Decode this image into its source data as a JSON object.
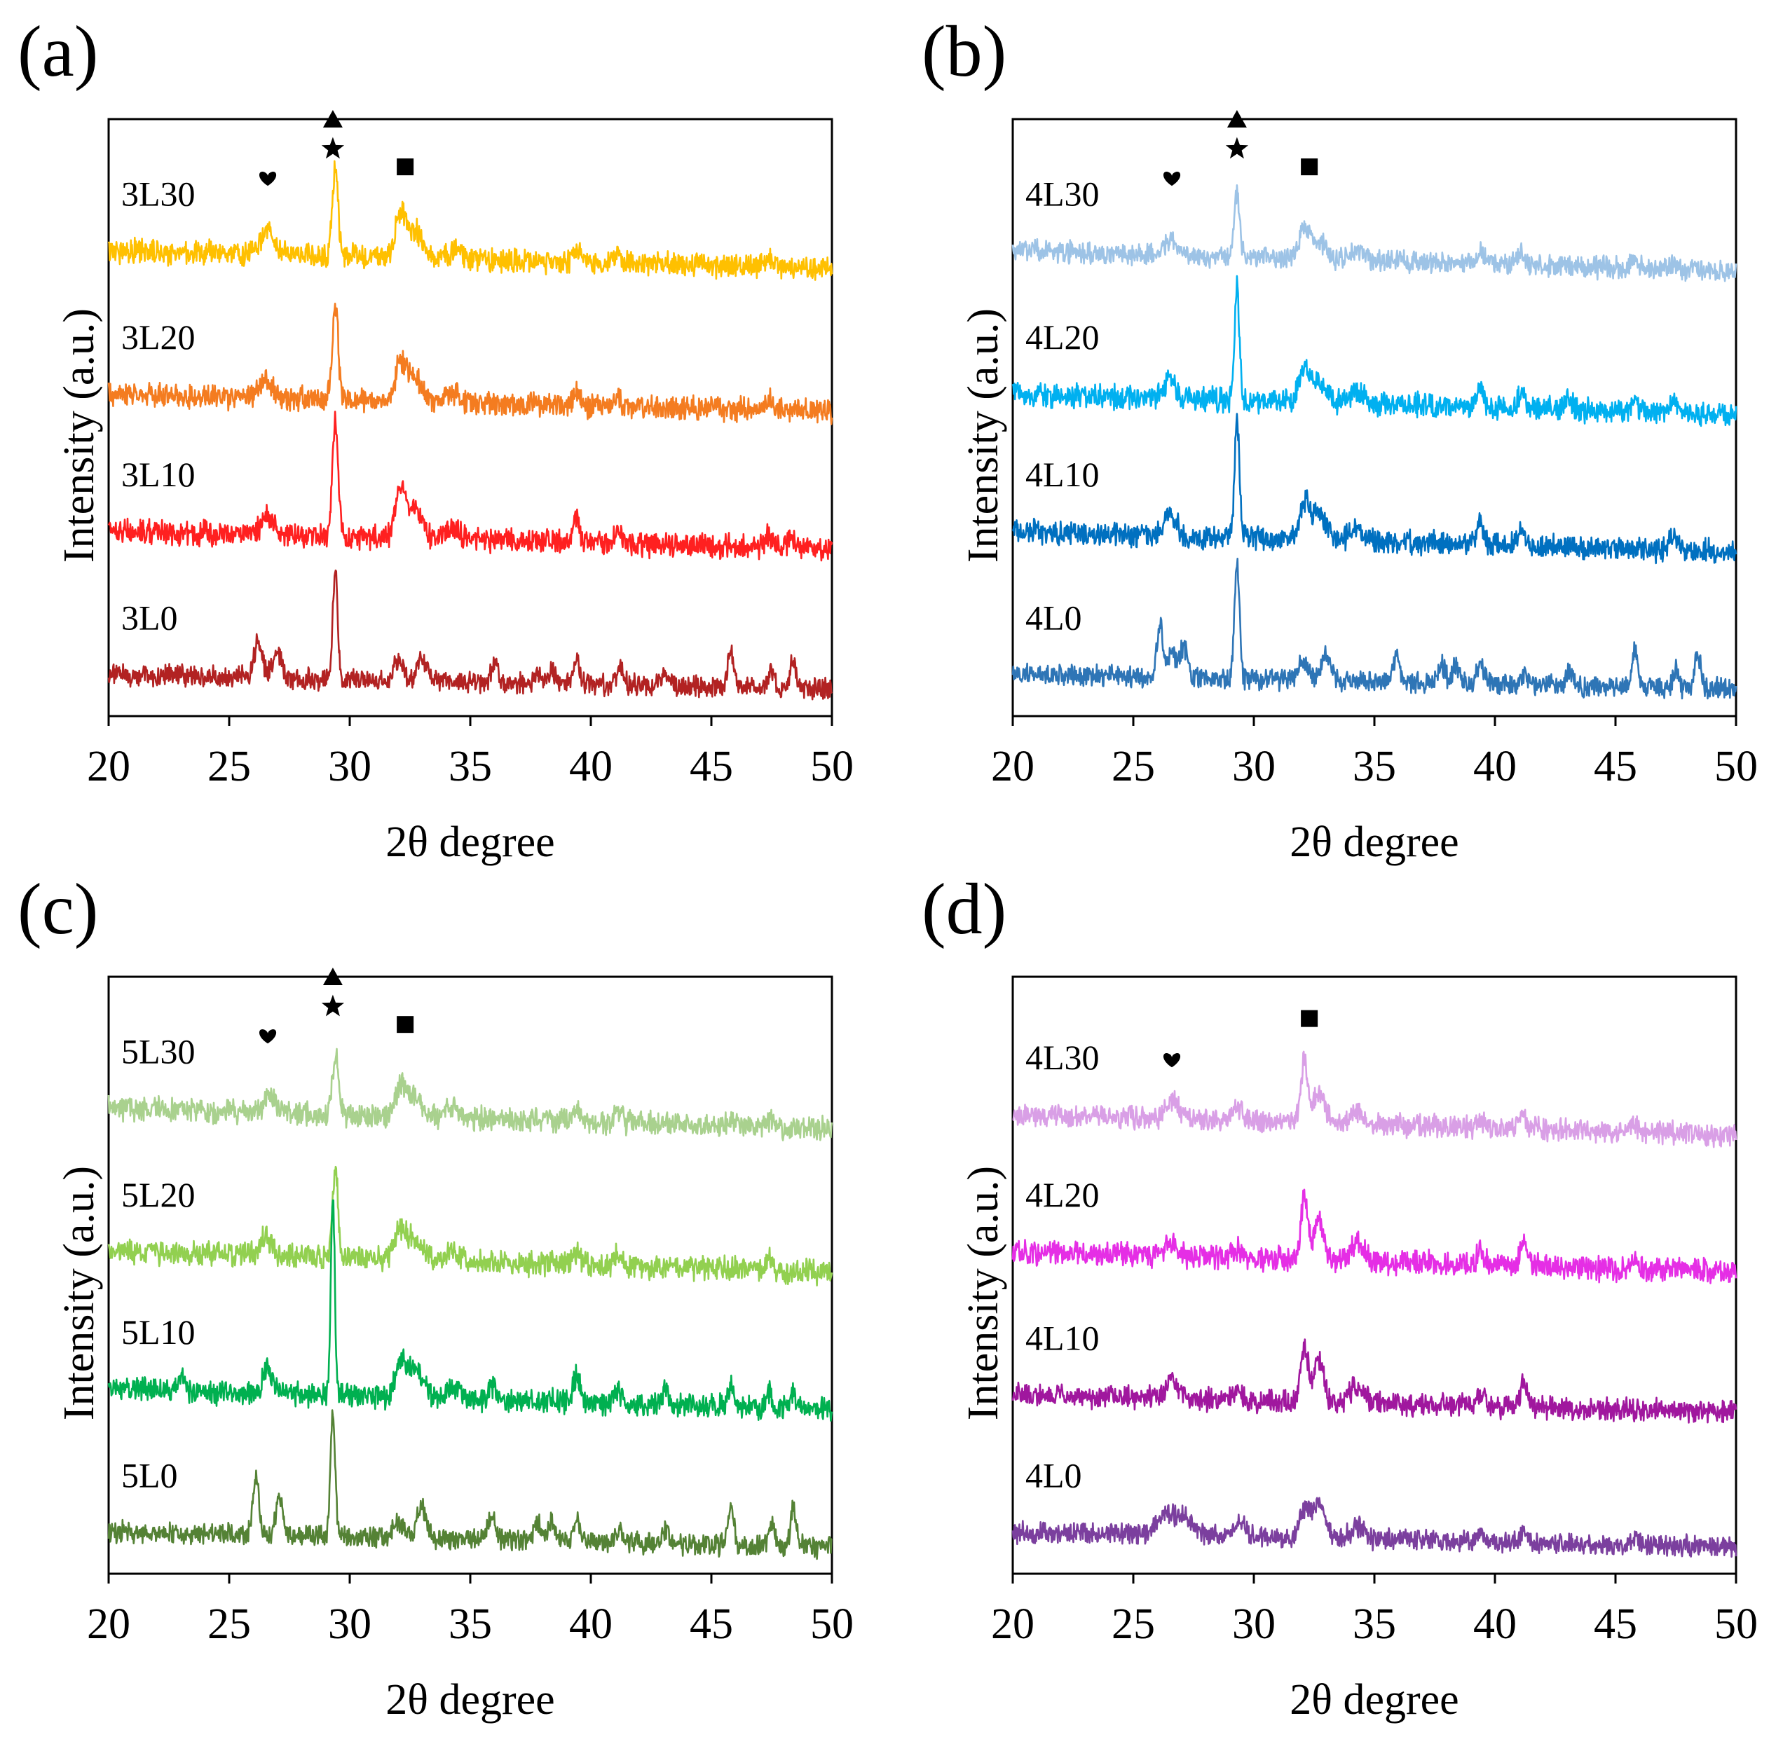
{
  "chart_data": [
    {
      "type": "line",
      "panel_label": "(a)",
      "xlabel": "2θ degree",
      "ylabel": "Intensity (a.u.)",
      "xlim": [
        20,
        50
      ],
      "x_ticks": [
        "20",
        "25",
        "30",
        "35",
        "40",
        "45",
        "50"
      ],
      "grid": false,
      "series": [
        {
          "name": "3L30",
          "color": "#FFC000",
          "baseline": 0.78,
          "drop": 0.03,
          "noise": 0.016,
          "peaks": [
            [
              26.6,
              0.04,
              0.25
            ],
            [
              29.4,
              0.14,
              0.12
            ],
            [
              32.1,
              0.07,
              0.22
            ],
            [
              32.7,
              0.045,
              0.3
            ],
            [
              34.4,
              0.015,
              0.3
            ],
            [
              39.4,
              0.02,
              0.15
            ],
            [
              41.1,
              0.02,
              0.15
            ],
            [
              47.4,
              0.018,
              0.15
            ]
          ]
        },
        {
          "name": "3L20",
          "color": "#F47C20",
          "baseline": 0.54,
          "drop": 0.03,
          "noise": 0.016,
          "peaks": [
            [
              26.5,
              0.03,
              0.25
            ],
            [
              29.4,
              0.16,
              0.12
            ],
            [
              32.1,
              0.06,
              0.22
            ],
            [
              32.7,
              0.04,
              0.3
            ],
            [
              34.3,
              0.015,
              0.3
            ],
            [
              39.4,
              0.02,
              0.15
            ],
            [
              41.1,
              0.02,
              0.15
            ],
            [
              47.4,
              0.015,
              0.15
            ]
          ]
        },
        {
          "name": "3L10",
          "color": "#FF2020",
          "baseline": 0.31,
          "drop": 0.03,
          "noise": 0.016,
          "peaks": [
            [
              26.6,
              0.035,
              0.25
            ],
            [
              29.4,
              0.19,
              0.12
            ],
            [
              32.1,
              0.08,
              0.2
            ],
            [
              32.7,
              0.05,
              0.3
            ],
            [
              34.3,
              0.02,
              0.3
            ],
            [
              39.4,
              0.035,
              0.15
            ],
            [
              41.1,
              0.025,
              0.15
            ],
            [
              47.4,
              0.02,
              0.15
            ],
            [
              48.3,
              0.02,
              0.15
            ]
          ]
        },
        {
          "name": "3L0",
          "color": "#B22222",
          "baseline": 0.07,
          "drop": 0.025,
          "noise": 0.014,
          "peaks": [
            [
              26.2,
              0.065,
              0.15
            ],
            [
              27.0,
              0.04,
              0.2
            ],
            [
              29.4,
              0.18,
              0.1
            ],
            [
              32.0,
              0.035,
              0.2
            ],
            [
              33.0,
              0.035,
              0.2
            ],
            [
              36.0,
              0.03,
              0.15
            ],
            [
              37.8,
              0.02,
              0.15
            ],
            [
              38.4,
              0.02,
              0.15
            ],
            [
              39.4,
              0.035,
              0.15
            ],
            [
              41.2,
              0.025,
              0.15
            ],
            [
              43.1,
              0.02,
              0.15
            ],
            [
              45.8,
              0.06,
              0.12
            ],
            [
              47.5,
              0.025,
              0.12
            ],
            [
              48.4,
              0.05,
              0.12
            ]
          ]
        }
      ],
      "markers": [
        {
          "symbol": "heart",
          "x": 26.6,
          "y": 0.9
        },
        {
          "symbol": "triangle",
          "x": 29.3,
          "y": 1.0
        },
        {
          "symbol": "star",
          "x": 29.3,
          "y": 0.95
        },
        {
          "symbol": "square",
          "x": 32.3,
          "y": 0.92
        }
      ]
    },
    {
      "type": "line",
      "panel_label": "(b)",
      "xlabel": "2θ degree",
      "ylabel": "Intensity (a.u.)",
      "xlim": [
        20,
        50
      ],
      "x_ticks": [
        "20",
        "25",
        "30",
        "35",
        "40",
        "45",
        "50"
      ],
      "grid": false,
      "series": [
        {
          "name": "4L30",
          "color": "#9DC3E6",
          "baseline": 0.78,
          "drop": 0.035,
          "noise": 0.014,
          "peaks": [
            [
              26.6,
              0.025,
              0.3
            ],
            [
              29.3,
              0.1,
              0.12
            ],
            [
              32.1,
              0.045,
              0.22
            ],
            [
              32.7,
              0.03,
              0.3
            ],
            [
              34.3,
              0.015,
              0.3
            ],
            [
              39.4,
              0.02,
              0.15
            ],
            [
              41.1,
              0.02,
              0.15
            ],
            [
              45.8,
              0.012,
              0.15
            ],
            [
              47.4,
              0.012,
              0.15
            ]
          ]
        },
        {
          "name": "4L20",
          "color": "#00B0F0",
          "baseline": 0.54,
          "drop": 0.035,
          "noise": 0.016,
          "peaks": [
            [
              26.5,
              0.03,
              0.25
            ],
            [
              29.3,
              0.19,
              0.1
            ],
            [
              32.1,
              0.05,
              0.22
            ],
            [
              32.7,
              0.035,
              0.3
            ],
            [
              34.3,
              0.02,
              0.3
            ],
            [
              39.4,
              0.03,
              0.15
            ],
            [
              41.1,
              0.025,
              0.15
            ],
            [
              43.1,
              0.015,
              0.15
            ],
            [
              45.8,
              0.015,
              0.15
            ],
            [
              47.4,
              0.025,
              0.15
            ]
          ]
        },
        {
          "name": "4L10",
          "color": "#0070C0",
          "baseline": 0.31,
          "drop": 0.035,
          "noise": 0.016,
          "peaks": [
            [
              26.5,
              0.04,
              0.25
            ],
            [
              29.3,
              0.2,
              0.1
            ],
            [
              32.1,
              0.06,
              0.22
            ],
            [
              32.7,
              0.04,
              0.3
            ],
            [
              34.3,
              0.02,
              0.3
            ],
            [
              39.4,
              0.035,
              0.15
            ],
            [
              41.1,
              0.025,
              0.15
            ],
            [
              47.4,
              0.025,
              0.15
            ]
          ]
        },
        {
          "name": "4L0",
          "color": "#2E75B6",
          "baseline": 0.07,
          "drop": 0.025,
          "noise": 0.014,
          "peaks": [
            [
              26.1,
              0.09,
              0.12
            ],
            [
              26.6,
              0.04,
              0.2
            ],
            [
              27.1,
              0.05,
              0.15
            ],
            [
              29.3,
              0.2,
              0.1
            ],
            [
              32.0,
              0.03,
              0.2
            ],
            [
              33.0,
              0.045,
              0.2
            ],
            [
              35.9,
              0.04,
              0.15
            ],
            [
              37.8,
              0.03,
              0.15
            ],
            [
              38.4,
              0.03,
              0.15
            ],
            [
              39.4,
              0.035,
              0.15
            ],
            [
              41.2,
              0.02,
              0.15
            ],
            [
              43.1,
              0.025,
              0.15
            ],
            [
              45.8,
              0.065,
              0.12
            ],
            [
              47.5,
              0.03,
              0.12
            ],
            [
              48.4,
              0.06,
              0.12
            ]
          ]
        }
      ],
      "markers": [
        {
          "symbol": "heart",
          "x": 26.6,
          "y": 0.9
        },
        {
          "symbol": "triangle",
          "x": 29.3,
          "y": 1.0
        },
        {
          "symbol": "star",
          "x": 29.3,
          "y": 0.95
        },
        {
          "symbol": "square",
          "x": 32.3,
          "y": 0.92
        }
      ]
    },
    {
      "type": "line",
      "panel_label": "(c)",
      "xlabel": "2θ degree",
      "ylabel": "Intensity (a.u.)",
      "xlim": [
        20,
        50
      ],
      "x_ticks": [
        "20",
        "25",
        "30",
        "35",
        "40",
        "45",
        "50"
      ],
      "grid": false,
      "series": [
        {
          "name": "5L30",
          "color": "#A9D18E",
          "baseline": 0.78,
          "drop": 0.035,
          "noise": 0.016,
          "peaks": [
            [
              26.7,
              0.03,
              0.25
            ],
            [
              29.4,
              0.1,
              0.12
            ],
            [
              32.1,
              0.05,
              0.22
            ],
            [
              32.7,
              0.035,
              0.3
            ],
            [
              34.3,
              0.015,
              0.3
            ],
            [
              39.4,
              0.02,
              0.15
            ],
            [
              41.1,
              0.02,
              0.15
            ],
            [
              45.8,
              0.012,
              0.15
            ],
            [
              47.4,
              0.012,
              0.15
            ]
          ]
        },
        {
          "name": "5L20",
          "color": "#92D050",
          "baseline": 0.54,
          "drop": 0.035,
          "noise": 0.016,
          "peaks": [
            [
              26.5,
              0.03,
              0.25
            ],
            [
              29.4,
              0.15,
              0.12
            ],
            [
              32.1,
              0.05,
              0.22
            ],
            [
              32.7,
              0.035,
              0.3
            ],
            [
              34.3,
              0.015,
              0.3
            ],
            [
              39.4,
              0.02,
              0.15
            ],
            [
              41.1,
              0.02,
              0.15
            ],
            [
              47.4,
              0.015,
              0.15
            ]
          ]
        },
        {
          "name": "5L10",
          "color": "#00B050",
          "baseline": 0.31,
          "drop": 0.035,
          "noise": 0.016,
          "peaks": [
            [
              23.0,
              0.025,
              0.15
            ],
            [
              26.6,
              0.04,
              0.2
            ],
            [
              29.3,
              0.33,
              0.08
            ],
            [
              32.1,
              0.06,
              0.2
            ],
            [
              32.7,
              0.05,
              0.3
            ],
            [
              34.3,
              0.02,
              0.3
            ],
            [
              35.9,
              0.025,
              0.12
            ],
            [
              39.4,
              0.04,
              0.15
            ],
            [
              41.1,
              0.025,
              0.15
            ],
            [
              43.1,
              0.025,
              0.15
            ],
            [
              45.8,
              0.03,
              0.12
            ],
            [
              47.4,
              0.03,
              0.12
            ],
            [
              48.4,
              0.025,
              0.12
            ]
          ]
        },
        {
          "name": "5L0",
          "color": "#548235",
          "baseline": 0.07,
          "drop": 0.025,
          "noise": 0.014,
          "peaks": [
            [
              26.1,
              0.1,
              0.12
            ],
            [
              27.1,
              0.065,
              0.15
            ],
            [
              29.3,
              0.2,
              0.1
            ],
            [
              32.0,
              0.03,
              0.2
            ],
            [
              33.0,
              0.05,
              0.2
            ],
            [
              35.9,
              0.035,
              0.15
            ],
            [
              37.8,
              0.035,
              0.15
            ],
            [
              38.4,
              0.03,
              0.15
            ],
            [
              39.4,
              0.035,
              0.15
            ],
            [
              41.2,
              0.02,
              0.15
            ],
            [
              43.1,
              0.025,
              0.15
            ],
            [
              45.8,
              0.065,
              0.12
            ],
            [
              47.5,
              0.03,
              0.12
            ],
            [
              48.4,
              0.065,
              0.12
            ]
          ]
        }
      ],
      "markers": [
        {
          "symbol": "heart",
          "x": 26.6,
          "y": 0.9
        },
        {
          "symbol": "triangle",
          "x": 29.3,
          "y": 1.0
        },
        {
          "symbol": "star",
          "x": 29.3,
          "y": 0.95
        },
        {
          "symbol": "square",
          "x": 32.3,
          "y": 0.92
        }
      ]
    },
    {
      "type": "line",
      "panel_label": "(d)",
      "xlabel": "2θ degree",
      "ylabel": "Intensity (a.u.)",
      "xlim": [
        20,
        50
      ],
      "x_ticks": [
        "20",
        "25",
        "30",
        "35",
        "40",
        "45",
        "50"
      ],
      "grid": false,
      "series": [
        {
          "name": "4L30",
          "color": "#D99FE6",
          "baseline": 0.77,
          "drop": 0.035,
          "noise": 0.015,
          "peaks": [
            [
              26.6,
              0.03,
              0.25
            ],
            [
              29.3,
              0.02,
              0.2
            ],
            [
              32.1,
              0.1,
              0.15
            ],
            [
              32.7,
              0.05,
              0.25
            ],
            [
              34.3,
              0.02,
              0.3
            ],
            [
              39.4,
              0.015,
              0.15
            ],
            [
              41.1,
              0.025,
              0.15
            ],
            [
              45.8,
              0.012,
              0.15
            ]
          ]
        },
        {
          "name": "4L20",
          "color": "#E52EE5",
          "baseline": 0.54,
          "drop": 0.035,
          "noise": 0.016,
          "peaks": [
            [
              26.6,
              0.025,
              0.25
            ],
            [
              29.3,
              0.015,
              0.2
            ],
            [
              32.1,
              0.11,
              0.15
            ],
            [
              32.7,
              0.07,
              0.2
            ],
            [
              34.3,
              0.03,
              0.3
            ],
            [
              39.4,
              0.02,
              0.15
            ],
            [
              41.2,
              0.045,
              0.15
            ],
            [
              45.8,
              0.015,
              0.15
            ]
          ]
        },
        {
          "name": "4L10",
          "color": "#A0179E",
          "baseline": 0.3,
          "drop": 0.03,
          "noise": 0.015,
          "peaks": [
            [
              26.6,
              0.035,
              0.2
            ],
            [
              29.3,
              0.015,
              0.2
            ],
            [
              32.1,
              0.095,
              0.15
            ],
            [
              32.7,
              0.07,
              0.2
            ],
            [
              34.3,
              0.03,
              0.3
            ],
            [
              39.4,
              0.02,
              0.15
            ],
            [
              41.2,
              0.04,
              0.15
            ]
          ]
        },
        {
          "name": "4L0",
          "color": "#7B3F9E",
          "baseline": 0.07,
          "drop": 0.025,
          "noise": 0.014,
          "peaks": [
            [
              26.2,
              0.03,
              0.3
            ],
            [
              27.0,
              0.035,
              0.4
            ],
            [
              29.4,
              0.025,
              0.25
            ],
            [
              32.1,
              0.05,
              0.2
            ],
            [
              32.7,
              0.06,
              0.25
            ],
            [
              34.3,
              0.02,
              0.3
            ],
            [
              39.4,
              0.012,
              0.15
            ],
            [
              41.2,
              0.02,
              0.15
            ],
            [
              45.8,
              0.015,
              0.15
            ]
          ]
        }
      ],
      "markers": [
        {
          "symbol": "heart",
          "x": 26.6,
          "y": 0.86
        },
        {
          "symbol": "square",
          "x": 32.3,
          "y": 0.93
        }
      ]
    }
  ]
}
